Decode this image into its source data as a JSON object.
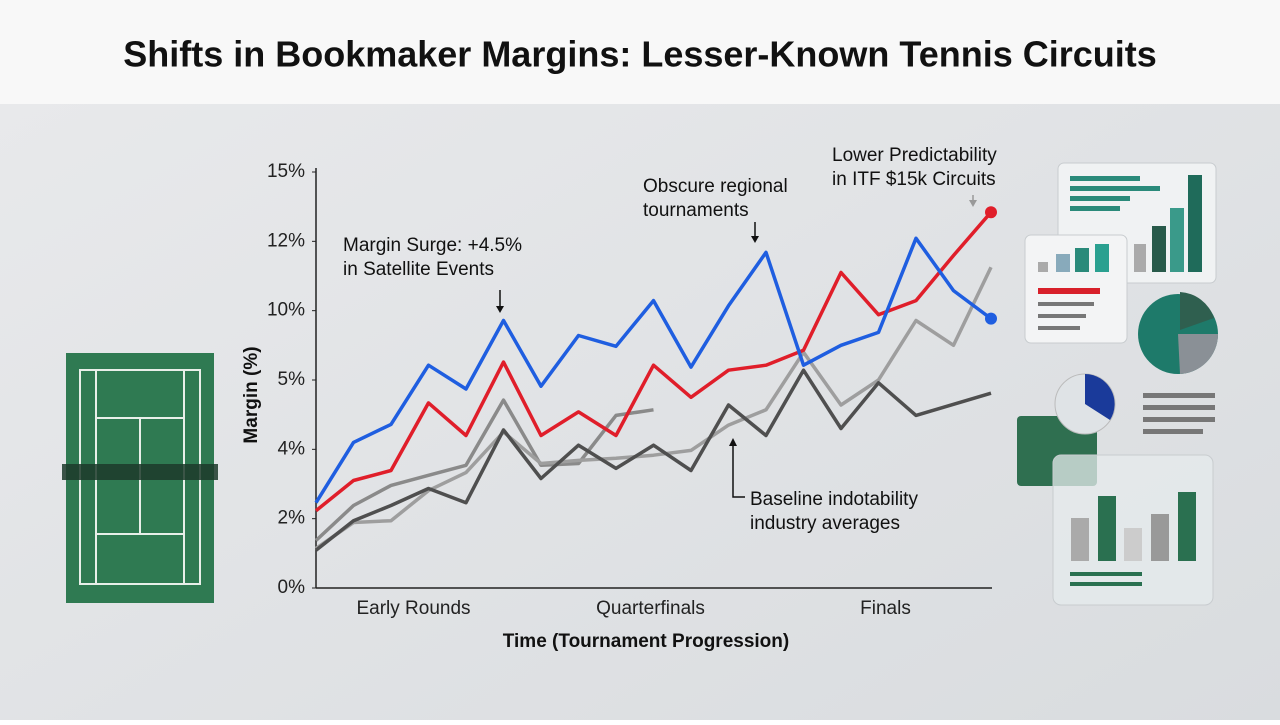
{
  "chart_data": {
    "type": "line",
    "title": "Shifts in Bookmaker Margins: Lesser-Known Tennis Circuits",
    "y_label": "Margin (%)",
    "x_label": "Time (Tournament Progression)",
    "categories": [
      null,
      null,
      null,
      "Early Rounds",
      null,
      null,
      null,
      null,
      null,
      "Quarterfinals",
      null,
      null,
      null,
      null,
      null,
      "Finals",
      null,
      null,
      null
    ],
    "ylim": [
      0,
      15
    ],
    "yticks": [
      {
        "value": 0,
        "label": "0%"
      },
      {
        "value": 2,
        "label": "2%"
      },
      {
        "value": 4,
        "label": "4%"
      },
      {
        "value": 5,
        "label": "5%"
      },
      {
        "value": 10,
        "label": "10%"
      },
      {
        "value": 12,
        "label": "12%"
      },
      {
        "value": 15,
        "label": "15%"
      }
    ],
    "series": [
      {
        "color": "#1f5ee0",
        "values": [
          2.46,
          4.1,
          4.36,
          6.07,
          4.87,
          9.29,
          4.91,
          8.21,
          7.43,
          10.29,
          5.93,
          10.14,
          11.68,
          6.07,
          7.5,
          8.43,
          12.13,
          10.58,
          9.43
        ]
      },
      {
        "color": "#e01e2a",
        "values": [
          2.23,
          3.1,
          3.39,
          4.67,
          4.2,
          6.29,
          4.2,
          4.54,
          4.2,
          6.07,
          4.75,
          5.71,
          6.07,
          7.14,
          11.1,
          9.71,
          10.29,
          11.59,
          13.26
        ]
      },
      {
        "color": "#8a8a8a",
        "values": [
          1.37,
          2.38,
          2.96,
          3.25,
          3.54,
          4.71,
          3.54,
          3.59,
          4.49,
          4.57,
          null,
          null,
          null,
          null,
          null,
          null,
          null,
          null,
          null
        ]
      },
      {
        "color": "#4f4f4f",
        "values": [
          1.09,
          1.94,
          2.38,
          2.87,
          2.46,
          4.28,
          3.16,
          4.06,
          3.45,
          4.06,
          3.39,
          4.64,
          4.2,
          5.71,
          4.3,
          4.96,
          4.49,
          4.65,
          4.81
        ]
      },
      {
        "color": "#9e9e9e",
        "values": [
          1.14,
          1.89,
          1.94,
          2.81,
          3.33,
          4.25,
          3.59,
          3.68,
          3.74,
          3.83,
          3.97,
          4.35,
          4.57,
          7.0,
          4.64,
          5.0,
          9.29,
          7.5,
          11.25
        ]
      }
    ],
    "annotations": [
      {
        "lines": [
          "Margin Surge: +4.5%",
          "in Satellite Events"
        ]
      },
      {
        "lines": [
          "Obscure regional",
          "tournaments"
        ]
      },
      {
        "lines": [
          "Lower Predictability",
          "in ITF $15k Circuits"
        ]
      },
      {
        "lines": [
          "Baseline indotability",
          "industry averages"
        ]
      }
    ]
  }
}
